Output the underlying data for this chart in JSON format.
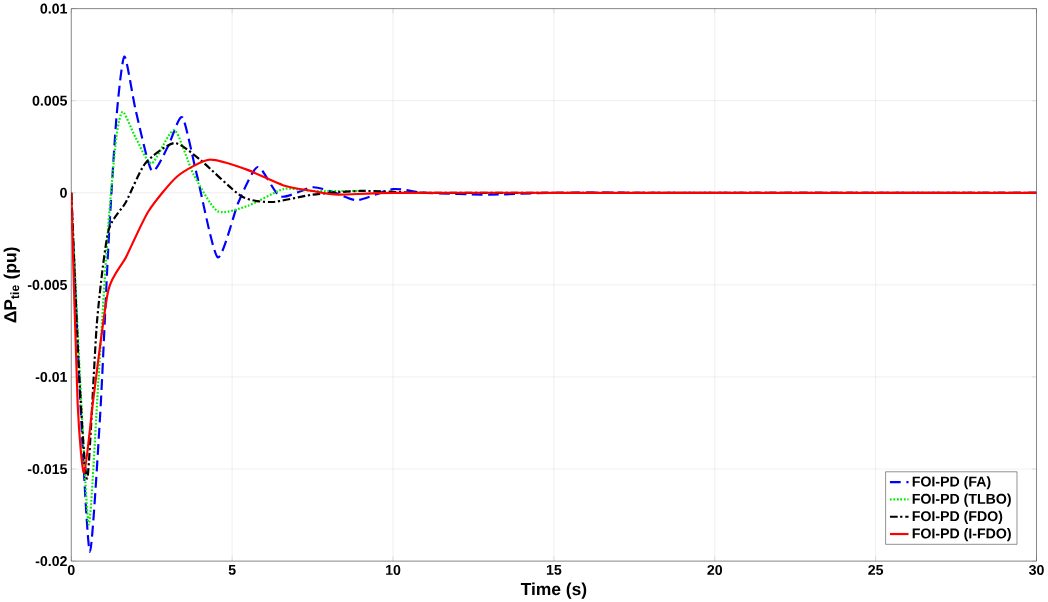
{
  "chart_data": {
    "type": "line",
    "xlabel": "Time (s)",
    "ylabel": "ΔP$_{tie}$ (pu)",
    "xlim": [
      0,
      30
    ],
    "ylim": [
      -0.02,
      0.01
    ],
    "xticks": [
      0,
      5,
      10,
      15,
      20,
      25,
      30
    ],
    "yticks": [
      -0.02,
      -0.015,
      -0.01,
      -0.005,
      0,
      0.005,
      0.01
    ],
    "grid": true,
    "legend": "bottom right",
    "marker": "none",
    "series": [
      {
        "name": "FOI-PD (FA)",
        "color": "#0000ff",
        "line_style": "dashed",
        "x": [
          0,
          0.3,
          0.58,
          0.9,
          1.15,
          1.4,
          1.65,
          2.0,
          2.5,
          3.0,
          3.45,
          3.9,
          4.55,
          5.2,
          5.8,
          6.5,
          7.5,
          8.2,
          8.9,
          10,
          11,
          13,
          15,
          20,
          30
        ],
        "values": [
          0,
          -0.012,
          -0.0195,
          -0.012,
          -0.003,
          0.004,
          0.0074,
          0.0045,
          0.0012,
          0.0025,
          0.0041,
          0.001,
          -0.0035,
          -0.0005,
          0.0014,
          -0.0002,
          0.0003,
          0,
          -0.0004,
          0.0002,
          0,
          -0.0001,
          0,
          0,
          0
        ]
      },
      {
        "name": "FOI-PD (TLBO)",
        "color": "#00ee00",
        "line_style": "dotted",
        "x": [
          0,
          0.3,
          0.55,
          0.85,
          1.15,
          1.4,
          1.6,
          2.0,
          2.5,
          3.2,
          3.8,
          4.55,
          5.5,
          6.6,
          7.5,
          9
        ],
        "values": [
          0,
          -0.011,
          -0.018,
          -0.01,
          -0.0018,
          0.003,
          0.0044,
          0.003,
          0.0016,
          0.0034,
          0.001,
          -0.001,
          -0.0007,
          0.0002,
          0.0001,
          0.0001
        ],
        "marker": "none"
      },
      {
        "name": "FOI-PD (FDO)",
        "color": "#000000",
        "line_style": "dashdotted",
        "x": [
          0,
          0.25,
          0.5,
          0.8,
          1.15,
          1.7,
          2.3,
          3.2,
          4.0,
          5.3,
          6.25,
          7.5,
          9,
          11,
          15,
          20,
          30
        ],
        "values": [
          0,
          -0.01,
          -0.0155,
          -0.007,
          -0.0021,
          -0.0005,
          0.0016,
          0.0027,
          0.0018,
          -0.0002,
          -0.0005,
          -0.0001,
          0.0001,
          0,
          0,
          0,
          0
        ]
      },
      {
        "name": "FOI-PD (I-FDO)",
        "color": "#ff0000",
        "line_style": "solid",
        "x": [
          0,
          0.2,
          0.4,
          0.7,
          1.15,
          1.7,
          2.4,
          3.3,
          4.3,
          5.4,
          6.6,
          7.5,
          8.3,
          10,
          15,
          20,
          30
        ],
        "values": [
          0,
          -0.0115,
          -0.0152,
          -0.011,
          -0.0053,
          -0.0035,
          -0.001,
          0.0009,
          0.0018,
          0.0013,
          0.0004,
          0.0001,
          -0.0001,
          0,
          0,
          0,
          0
        ]
      }
    ]
  }
}
